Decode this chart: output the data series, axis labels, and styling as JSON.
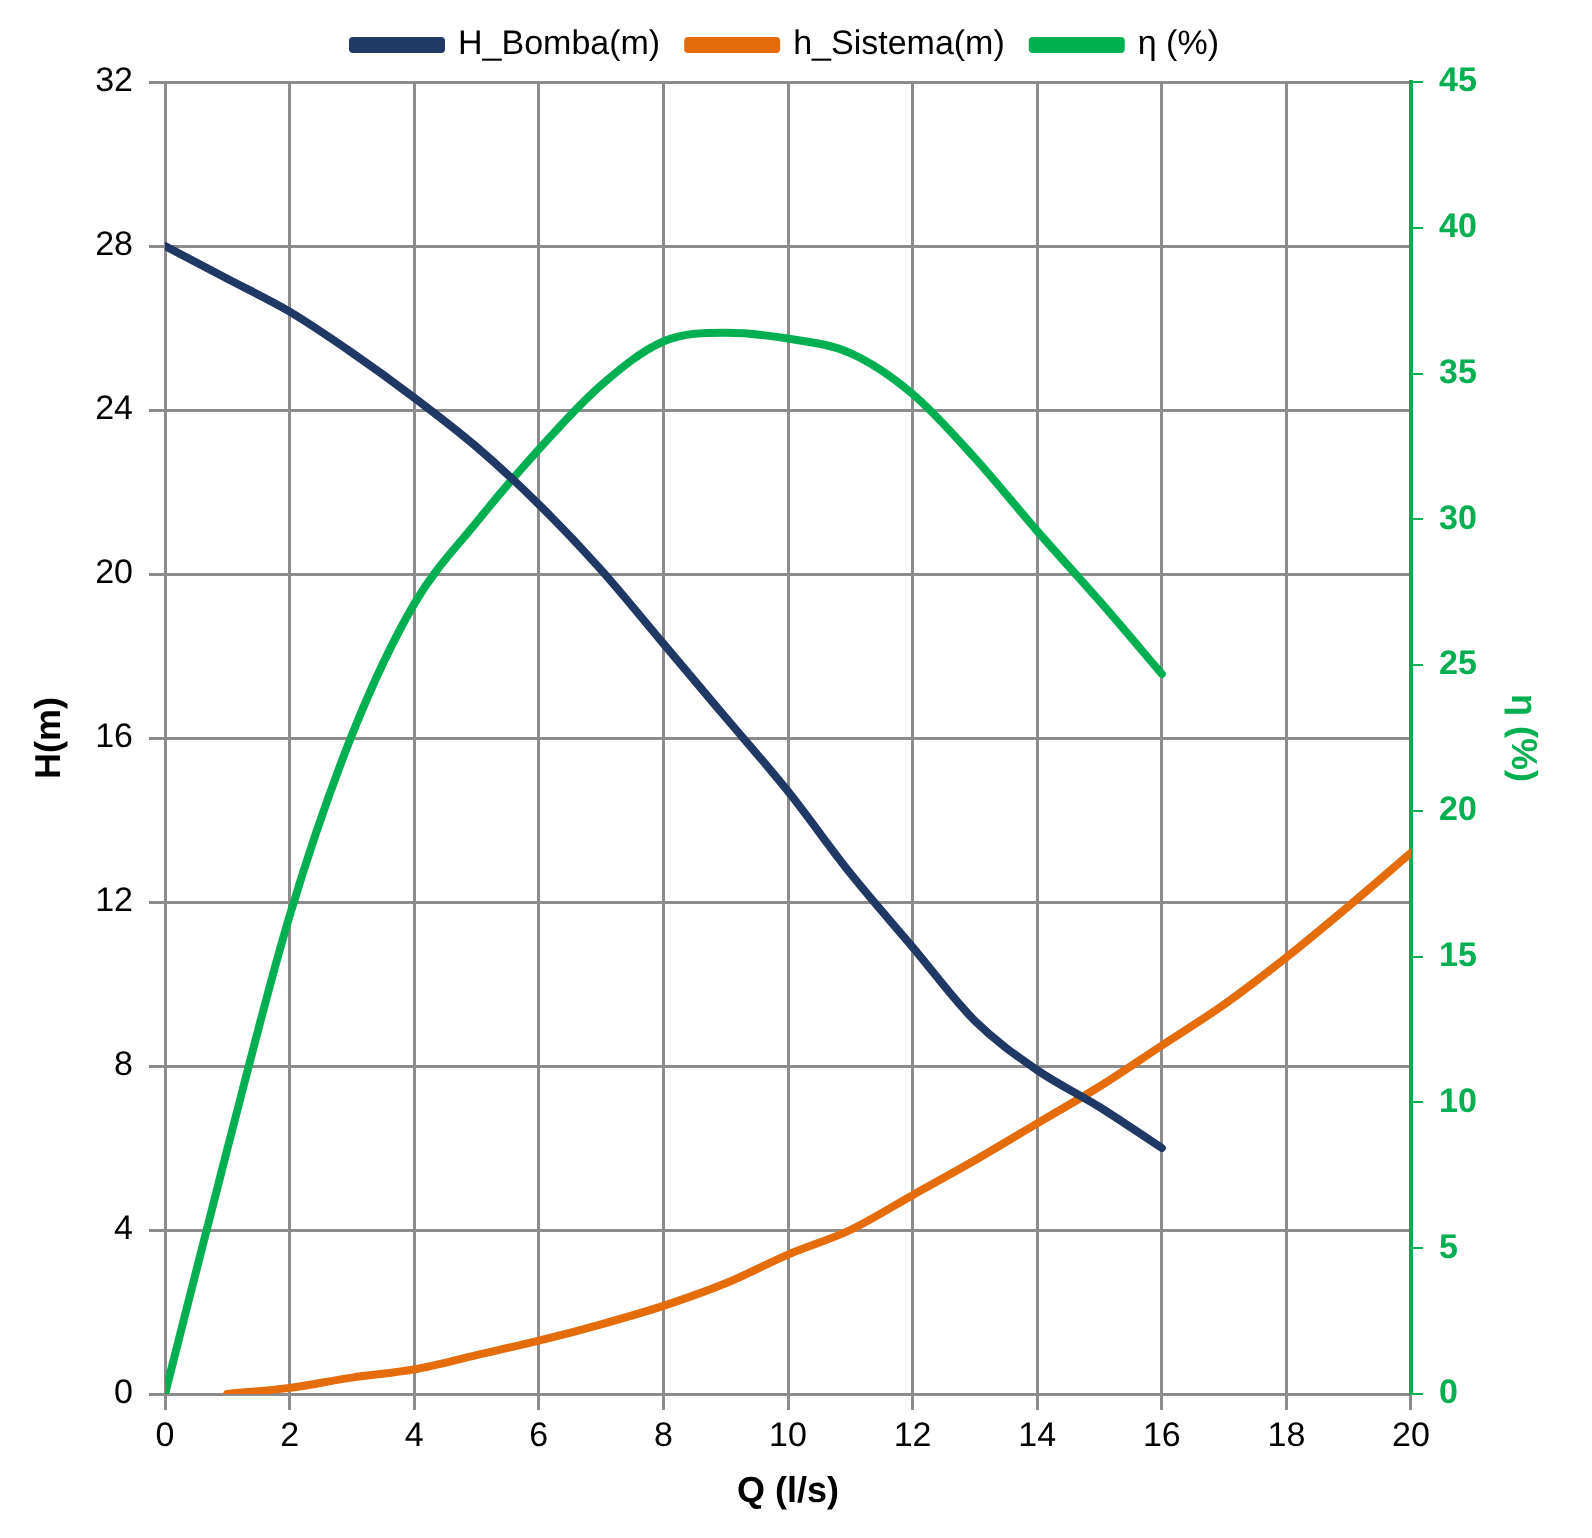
{
  "chart_data": {
    "type": "line",
    "xlabel": "Q (l/s)",
    "ylabel": "H(m)",
    "y2label": "η (%)",
    "legend": "top",
    "grid": true,
    "marker": "none",
    "line_style": "solid",
    "xlim": [
      0,
      20
    ],
    "xticks": [
      0,
      2,
      4,
      6,
      8,
      10,
      12,
      14,
      16,
      18,
      20
    ],
    "ylim": [
      0,
      32
    ],
    "yticks": [
      0,
      4,
      8,
      12,
      16,
      20,
      24,
      28,
      32
    ],
    "y2lim": [
      0,
      45
    ],
    "y2ticks": [
      0,
      5,
      10,
      15,
      20,
      25,
      30,
      35,
      40,
      45
    ],
    "series": [
      {
        "name": "H_Bomba(m)",
        "color": "#1f3864",
        "x": [
          0,
          1,
          2,
          3,
          4,
          5,
          6,
          7,
          8,
          9,
          10,
          11,
          12,
          13,
          14,
          15,
          16
        ],
        "values": [
          28,
          27.2,
          26.4,
          25.4,
          24.3,
          23.1,
          21.7,
          20.1,
          18.3,
          16.5,
          14.7,
          12.7,
          10.9,
          9.1,
          7.9,
          7,
          6
        ]
      },
      {
        "name": "h_Sistema(m)",
        "color": "#e46c0a",
        "x": [
          1,
          2,
          3,
          4,
          5,
          6,
          7,
          8,
          9,
          10,
          11,
          12,
          13,
          14,
          15,
          16,
          17,
          18,
          19,
          20
        ],
        "values": [
          0,
          0.15,
          0.4,
          0.6,
          0.95,
          1.3,
          1.7,
          2.15,
          2.7,
          3.4,
          4,
          4.85,
          5.7,
          6.6,
          7.5,
          8.5,
          9.5,
          10.65,
          11.9,
          13.2
        ]
      },
      {
        "name": "η (%)",
        "color": "#00b050",
        "axis": "y2",
        "x": [
          0,
          1,
          2,
          3,
          4,
          5,
          6,
          7,
          8,
          9,
          10,
          11,
          12,
          13,
          14,
          15,
          16
        ],
        "values": [
          0,
          8.4,
          16.4,
          22.6,
          27.1,
          29.9,
          32.4,
          34.6,
          36.1,
          36.4,
          36.2,
          35.7,
          34.3,
          32.1,
          29.6,
          27.2,
          24.7
        ]
      }
    ]
  }
}
